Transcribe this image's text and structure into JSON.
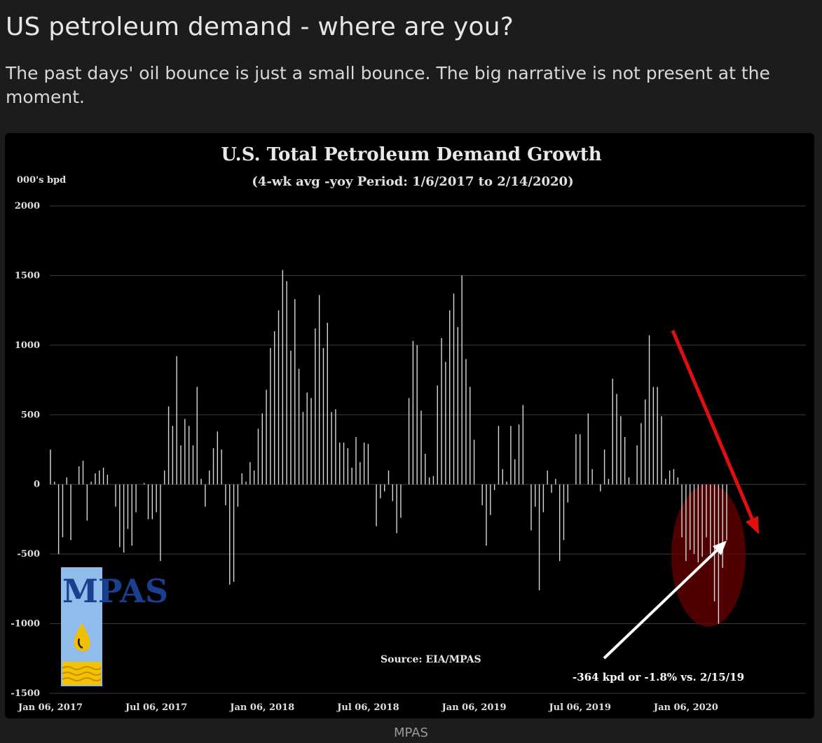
{
  "article": {
    "headline": "US petroleum demand - where are you?",
    "deck": "The past days' oil bounce is just a small bounce. The big narrative is not present at the moment.",
    "caption": "MPAS"
  },
  "chart_data": {
    "type": "bar",
    "title": "U.S. Total Petroleum Demand Growth",
    "subtitle": "(4-wk avg -yoy Period: 1/6/2017 to 2/14/2020)",
    "ylabel": "000's bpd",
    "ylim": [
      -1500,
      2000
    ],
    "yticks": [
      "2000",
      "1500",
      "1000",
      "500",
      "0",
      "-500",
      "-1000",
      "-1500"
    ],
    "xticks": [
      "Jan 06, 2017",
      "Jul 06, 2017",
      "Jan 06, 2018",
      "Jul 06, 2018",
      "Jan 06, 2019",
      "Jul 06, 2019",
      "Jan 06, 2020"
    ],
    "grid": true,
    "source": "Source: EIA/MPAS",
    "annotation": "-364 kpd or -1.8% vs. 2/15/19",
    "logo_text": "MPAS",
    "colors": {
      "bars": "#d9d9d9",
      "arrow_trend": "#e01010",
      "highlight": "#6a0000",
      "arrow_note": "#ffffff"
    },
    "values": [
      250,
      20,
      -500,
      -380,
      50,
      -400,
      0,
      130,
      170,
      -260,
      20,
      80,
      100,
      120,
      70,
      0,
      -160,
      -450,
      -490,
      -320,
      -440,
      -200,
      0,
      10,
      -250,
      -250,
      -200,
      -550,
      100,
      560,
      420,
      920,
      280,
      470,
      420,
      280,
      700,
      40,
      -160,
      100,
      260,
      380,
      250,
      -150,
      -720,
      -700,
      -160,
      80,
      20,
      160,
      100,
      400,
      510,
      680,
      980,
      1100,
      1250,
      1540,
      1460,
      960,
      1330,
      830,
      520,
      660,
      620,
      1120,
      1360,
      980,
      1160,
      520,
      540,
      300,
      300,
      260,
      120,
      340,
      160,
      300,
      290,
      0,
      -300,
      -100,
      -50,
      100,
      -120,
      -350,
      -240,
      0,
      620,
      1030,
      1000,
      530,
      220,
      50,
      60,
      710,
      1050,
      880,
      1250,
      1370,
      1130,
      1500,
      900,
      700,
      320,
      0,
      -150,
      -440,
      -220,
      -40,
      420,
      110,
      20,
      420,
      180,
      430,
      570,
      0,
      -330,
      -160,
      -760,
      -200,
      100,
      -60,
      40,
      -550,
      -400,
      -130,
      0,
      360,
      360,
      0,
      510,
      110,
      0,
      -50,
      250,
      40,
      760,
      650,
      490,
      340,
      50,
      0,
      280,
      440,
      610,
      1070,
      700,
      700,
      490,
      40,
      100,
      110,
      50,
      -380,
      -550,
      -470,
      -500,
      -560,
      -520,
      -380,
      -500,
      -840,
      -1000,
      -600,
      -400
    ]
  }
}
